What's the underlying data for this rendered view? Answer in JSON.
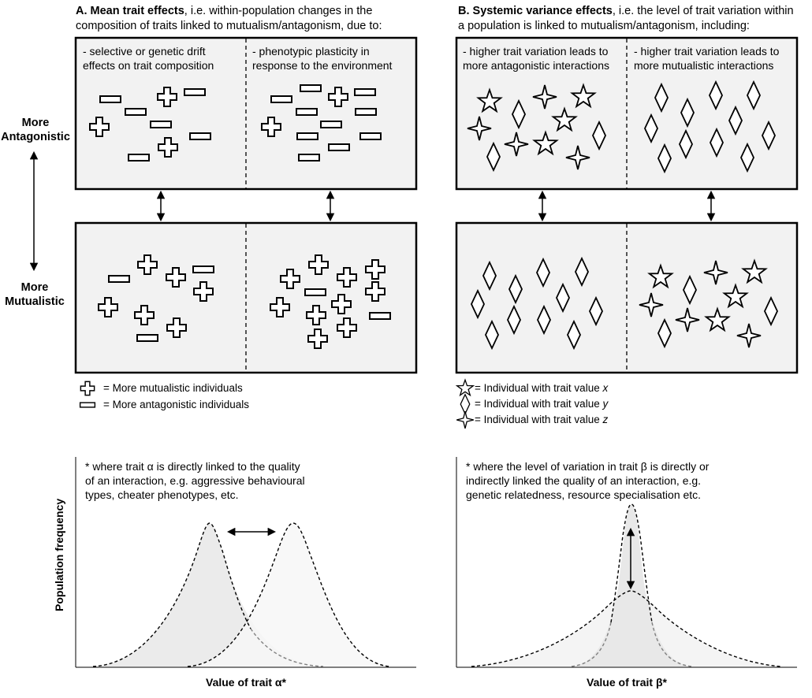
{
  "panel_a": {
    "heading_letter": "A.",
    "heading_bold": "Mean trait effects",
    "heading_rest_1": ", i.e. within-population  changes in the",
    "heading_line_2": "composition of traits linked to mutualism/antagonism, due to:",
    "col1_line1": "- selective or genetic drift",
    "col1_line2": "effects on trait composition",
    "col2_line1": "- phenotypic  plasticity in",
    "col2_line2": "response to the environment",
    "legend_plus": "= More  mutualistic individuals",
    "legend_minus": "= More  antagonistic individuals",
    "note_line1": "* where trait α is directly linked to the quality",
    "note_line2": "of an interaction, e.g. aggressive behavioural",
    "note_line3": "types, cheater phenotypes, etc.",
    "x_label": "Value of trait α*",
    "y_label": "Population frequency"
  },
  "panel_b": {
    "heading_letter": "B.",
    "heading_bold": "Systemic variance effects",
    "heading_rest_1": ", i.e. the level of trait variation within",
    "heading_line_2": "a population  is linked to mutualism/antagonism, including:",
    "col1_line1": "- higher trait variation leads to",
    "col1_line2": "more antagonistic interactions",
    "col2_line1": "- higher trait variation leads to",
    "col2_line2": "more mutualistic interactions",
    "legend_x": "= Individual  with trait value ",
    "legend_x_var": "x",
    "legend_y": "= Individual  with trait value ",
    "legend_y_var": "y",
    "legend_z": "= Individual  with trait value ",
    "legend_z_var": "z",
    "note_line1": "* where the level of variation in trait β is directly or",
    "note_line2": "indirectly linked the quality of an interaction, e.g.",
    "note_line3": "genetic relatedness, resource specialisation etc.",
    "x_label": "Value of trait β*"
  },
  "side": {
    "top_line1": "More",
    "top_line2": "Antagonistic",
    "bottom_line1": "More",
    "bottom_line2": "Mutualistic"
  },
  "icons": {
    "plus": "plus-icon",
    "minus": "minus-icon",
    "star": "star-icon",
    "diamond": "diamond-icon",
    "sparkle": "four-point-star-icon"
  },
  "colors": {
    "box_fill": "#f2f2f2",
    "curve_fill": "#ebebeb",
    "curve_fill_light": "#f5f5f5",
    "dashed_grey": "#808080"
  }
}
